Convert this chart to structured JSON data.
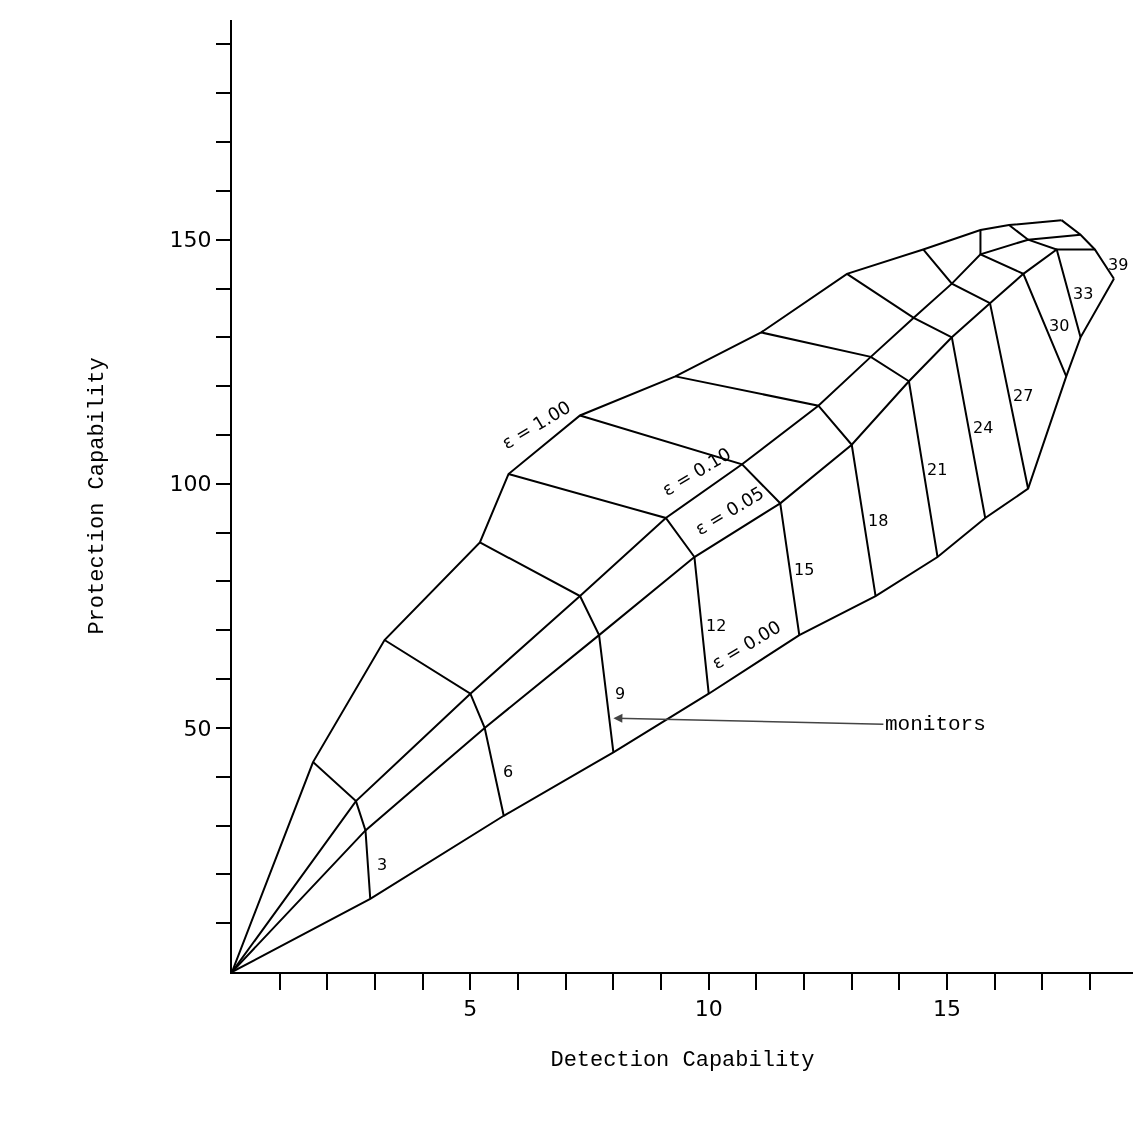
{
  "chart_data": {
    "type": "line",
    "xlabel": "Detection Capability",
    "ylabel": "Protection Capability",
    "xlim": [
      0,
      18.9
    ],
    "ylim": [
      0,
      195
    ],
    "xticks": [
      {
        "value": 1,
        "label": null
      },
      {
        "value": 2,
        "label": null
      },
      {
        "value": 3,
        "label": null
      },
      {
        "value": 4,
        "label": null
      },
      5,
      {
        "value": 6,
        "label": null
      },
      {
        "value": 7,
        "label": null
      },
      {
        "value": 8,
        "label": null
      },
      {
        "value": 9,
        "label": null
      },
      10,
      {
        "value": 11,
        "label": null
      },
      {
        "value": 12,
        "label": null
      },
      {
        "value": 13,
        "label": null
      },
      {
        "value": 14,
        "label": null
      },
      15,
      {
        "value": 16,
        "label": null
      },
      {
        "value": 17,
        "label": null
      },
      {
        "value": 18,
        "label": null
      }
    ],
    "yticks": [
      {
        "value": 10,
        "label": null
      },
      {
        "value": 20,
        "label": null
      },
      {
        "value": 30,
        "label": null
      },
      {
        "value": 40,
        "label": null
      },
      50,
      {
        "value": 60,
        "label": null
      },
      {
        "value": 70,
        "label": null
      },
      {
        "value": 80,
        "label": null
      },
      {
        "value": 90,
        "label": null
      },
      100,
      {
        "value": 110,
        "label": null
      },
      {
        "value": 120,
        "label": null
      },
      {
        "value": 130,
        "label": null
      },
      {
        "value": 140,
        "label": null
      },
      150,
      {
        "value": 160,
        "label": null
      },
      {
        "value": 170,
        "label": null
      },
      {
        "value": 180,
        "label": null
      },
      {
        "value": 190,
        "label": null
      }
    ],
    "grid": false,
    "line_style": "solid",
    "series": [
      {
        "color": "#000000",
        "x": [
          0,
          1.7,
          3.2,
          5.2,
          5.8,
          7.3,
          9.3,
          11.1,
          12.9,
          14.5,
          15.7,
          16.3,
          17.4
        ],
        "values": [
          0,
          43,
          68,
          88,
          102,
          114,
          122,
          131,
          143,
          148,
          152,
          153,
          154
        ]
      },
      {
        "color": "#000000",
        "x": [
          0,
          2.6,
          5.0,
          7.3,
          9.1,
          10.7,
          12.3,
          13.4,
          14.3,
          15.1,
          15.7,
          16.7,
          17.8
        ],
        "values": [
          0,
          35,
          57,
          77,
          93,
          104,
          116,
          126,
          134,
          141,
          147,
          150,
          151
        ]
      },
      {
        "color": "#000000",
        "x": [
          0,
          2.8,
          5.3,
          7.7,
          9.7,
          11.5,
          13.0,
          14.2,
          15.1,
          15.9,
          16.6,
          17.3,
          18.1
        ],
        "values": [
          0,
          29,
          50,
          69,
          85,
          96,
          108,
          121,
          130,
          137,
          143,
          148,
          148
        ]
      },
      {
        "color": "#000000",
        "x": [
          0,
          2.9,
          5.7,
          8.0,
          10.0,
          11.9,
          13.5,
          14.8,
          15.8,
          16.7,
          17.5,
          17.8,
          18.5
        ],
        "values": [
          0,
          15,
          32,
          45,
          57,
          69,
          77,
          85,
          93,
          99,
          122,
          130,
          142
        ]
      },
      {
        "color": "#000000",
        "x": [
          1.7,
          2.6,
          2.8,
          2.9
        ],
        "values": [
          43,
          35,
          29,
          15
        ]
      },
      {
        "color": "#000000",
        "x": [
          3.2,
          5.0,
          5.3,
          5.7
        ],
        "values": [
          68,
          57,
          50,
          32
        ]
      },
      {
        "color": "#000000",
        "x": [
          5.2,
          7.3,
          7.7,
          8.0
        ],
        "values": [
          88,
          77,
          69,
          45
        ]
      },
      {
        "color": "#000000",
        "x": [
          5.8,
          9.1,
          9.7,
          10.0
        ],
        "values": [
          102,
          93,
          85,
          57
        ]
      },
      {
        "color": "#000000",
        "x": [
          7.3,
          10.7,
          11.5,
          11.9
        ],
        "values": [
          114,
          104,
          96,
          69
        ]
      },
      {
        "color": "#000000",
        "x": [
          9.3,
          12.3,
          13.0,
          13.5
        ],
        "values": [
          122,
          116,
          108,
          77
        ]
      },
      {
        "color": "#000000",
        "x": [
          11.1,
          13.4,
          14.2,
          14.8
        ],
        "values": [
          131,
          126,
          121,
          85
        ]
      },
      {
        "color": "#000000",
        "x": [
          12.9,
          14.3,
          15.1,
          15.8
        ],
        "values": [
          143,
          134,
          130,
          93
        ]
      },
      {
        "color": "#000000",
        "x": [
          14.5,
          15.1,
          15.9,
          16.7
        ],
        "values": [
          148,
          141,
          137,
          99
        ]
      },
      {
        "color": "#000000",
        "x": [
          15.7,
          15.7,
          16.6,
          17.5
        ],
        "values": [
          152,
          147,
          143,
          122
        ]
      },
      {
        "color": "#000000",
        "x": [
          16.3,
          16.7,
          17.3,
          17.8
        ],
        "values": [
          153,
          150,
          148,
          130
        ]
      },
      {
        "color": "#000000",
        "x": [
          17.4,
          17.8,
          18.1,
          18.5
        ],
        "values": [
          154,
          151,
          148,
          142
        ]
      }
    ],
    "annotations": [
      {
        "text": "ε = 1.00",
        "x": 6.55,
        "y": 108
      },
      {
        "text": "ε = 0.10",
        "x": 9.9,
        "y": 98.5
      },
      {
        "text": "ε = 0.05",
        "x": 10.6,
        "y": 90.5
      },
      {
        "text": "ε = 0.00",
        "x": 10.95,
        "y": 63
      },
      {
        "text": "3",
        "x": 2.85,
        "y": 22
      },
      {
        "text": "6",
        "x": 5.5,
        "y": 41
      },
      {
        "text": "9",
        "x": 7.85,
        "y": 57
      },
      {
        "text": "12",
        "x": 9.85,
        "y": 71
      },
      {
        "text": "15",
        "x": 11.7,
        "y": 82.5
      },
      {
        "text": "18",
        "x": 13.25,
        "y": 92.5
      },
      {
        "text": "21",
        "x": 14.5,
        "y": 103
      },
      {
        "text": "24",
        "x": 15.45,
        "y": 111.5
      },
      {
        "text": "27",
        "x": 16.3,
        "y": 118
      },
      {
        "text": "30",
        "x": 17.05,
        "y": 132.5
      },
      {
        "text": "33",
        "x": 17.55,
        "y": 139
      },
      {
        "text": "39",
        "x": 18.3,
        "y": 145
      },
      {
        "text": "monitors",
        "x": 8.0,
        "y": 52
      }
    ]
  }
}
